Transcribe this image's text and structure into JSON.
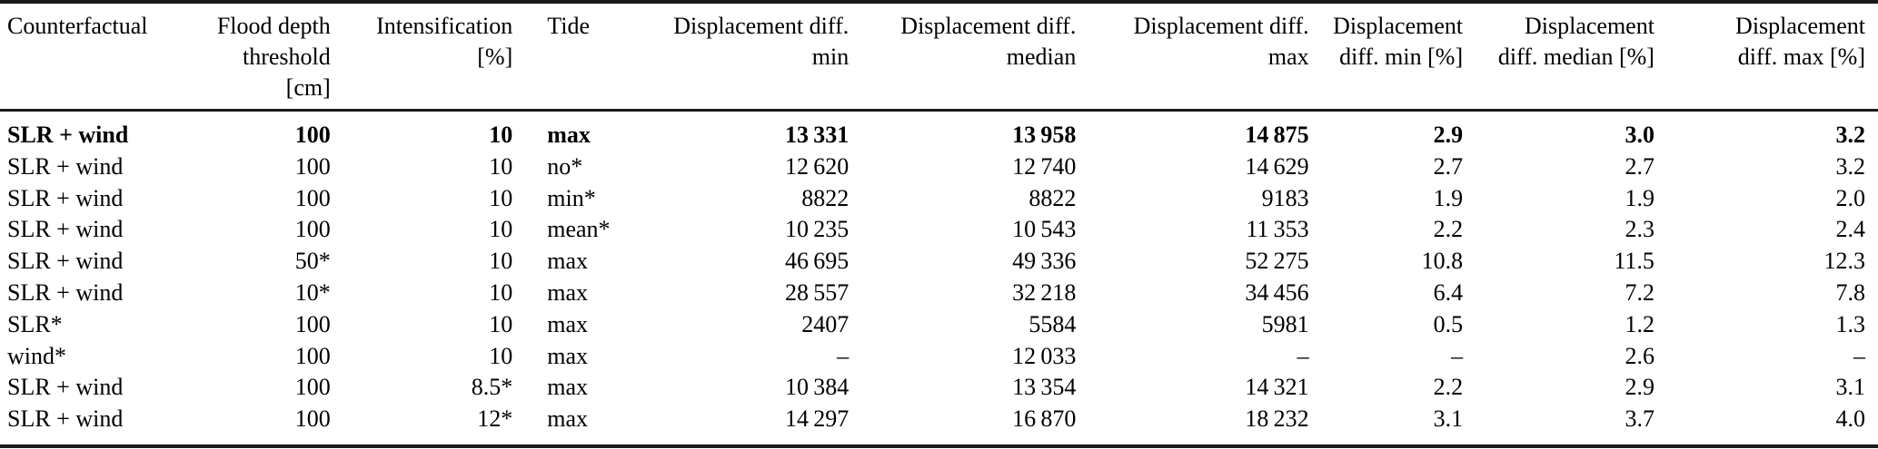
{
  "colors": {
    "background": "#ffffff",
    "text": "#000000",
    "rule": "#1a1a1a"
  },
  "table": {
    "columns": [
      "Counterfactual",
      "Flood depth\nthreshold\n[cm]",
      "Intensification\n[%]",
      "Tide",
      "Displacement diff.\nmin",
      "Displacement diff.\nmedian",
      "Displacement diff.\nmax",
      "Displacement\ndiff. min [%]",
      "Displacement\ndiff. median [%]",
      "Displacement\ndiff. max [%]"
    ],
    "rows": [
      {
        "emphasis": true,
        "cells": [
          "SLR + wind",
          "100",
          "10",
          "max",
          "13 331",
          "13 958",
          "14 875",
          "2.9",
          "3.0",
          "3.2"
        ]
      },
      {
        "emphasis": false,
        "cells": [
          "SLR + wind",
          "100",
          "10",
          "no*",
          "12 620",
          "12 740",
          "14 629",
          "2.7",
          "2.7",
          "3.2"
        ]
      },
      {
        "emphasis": false,
        "cells": [
          "SLR + wind",
          "100",
          "10",
          "min*",
          "8822",
          "8822",
          "9183",
          "1.9",
          "1.9",
          "2.0"
        ]
      },
      {
        "emphasis": false,
        "cells": [
          "SLR + wind",
          "100",
          "10",
          "mean*",
          "10 235",
          "10 543",
          "11 353",
          "2.2",
          "2.3",
          "2.4"
        ]
      },
      {
        "emphasis": false,
        "cells": [
          "SLR + wind",
          "50*",
          "10",
          "max",
          "46 695",
          "49 336",
          "52 275",
          "10.8",
          "11.5",
          "12.3"
        ]
      },
      {
        "emphasis": false,
        "cells": [
          "SLR + wind",
          "10*",
          "10",
          "max",
          "28 557",
          "32 218",
          "34 456",
          "6.4",
          "7.2",
          "7.8"
        ]
      },
      {
        "emphasis": false,
        "cells": [
          "SLR*",
          "100",
          "10",
          "max",
          "2407",
          "5584",
          "5981",
          "0.5",
          "1.2",
          "1.3"
        ]
      },
      {
        "emphasis": false,
        "cells": [
          "wind*",
          "100",
          "10",
          "max",
          "–",
          "12 033",
          "–",
          "–",
          "2.6",
          "–"
        ]
      },
      {
        "emphasis": false,
        "cells": [
          "SLR + wind",
          "100",
          "8.5*",
          "max",
          "10 384",
          "13 354",
          "14 321",
          "2.2",
          "2.9",
          "3.1"
        ]
      },
      {
        "emphasis": false,
        "cells": [
          "SLR + wind",
          "100",
          "12*",
          "max",
          "14 297",
          "16 870",
          "18 232",
          "3.1",
          "3.7",
          "4.0"
        ]
      }
    ]
  }
}
